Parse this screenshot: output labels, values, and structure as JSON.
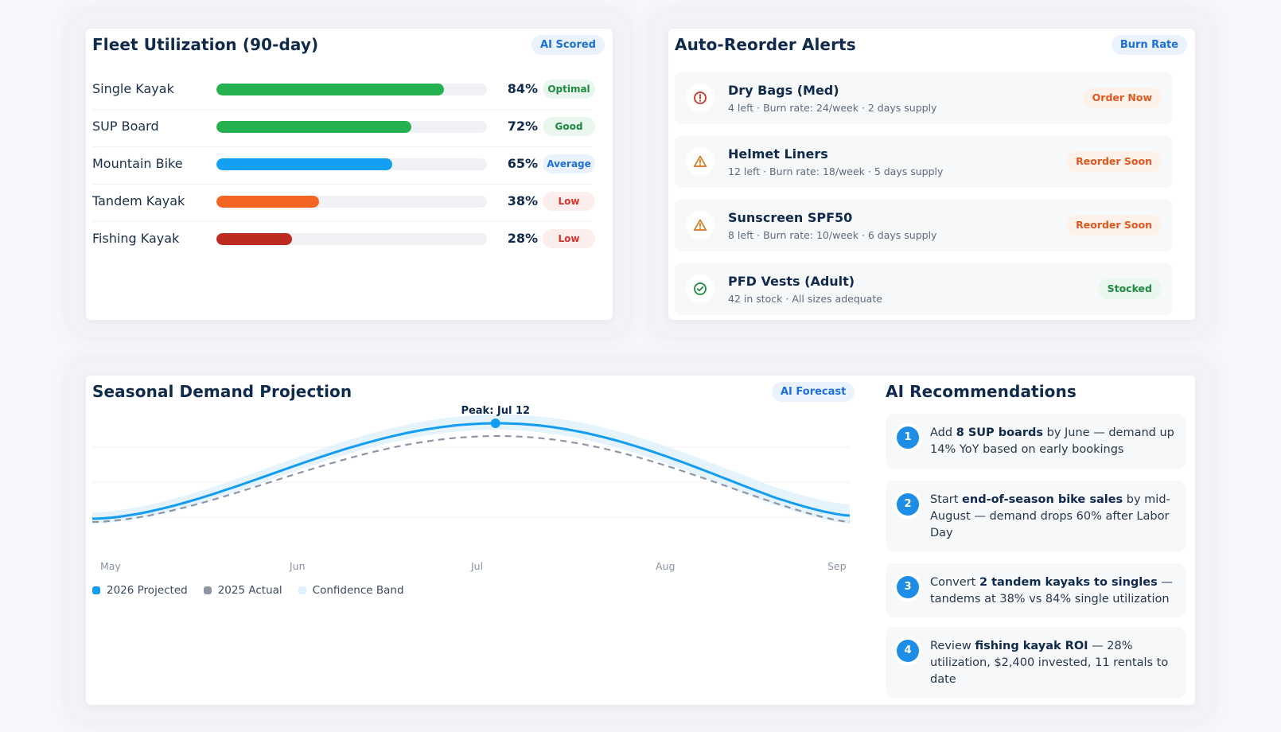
{
  "fleet": {
    "title": "Fleet Utilization (90-day)",
    "badge": "AI Scored",
    "rows": [
      {
        "name": "Single Kayak",
        "pct_value": 84,
        "pct": "84%",
        "status": "Optimal",
        "bar_color": "#25b150",
        "badge_fg": "#1c8a3f",
        "badge_bg": "#eaf7ee"
      },
      {
        "name": "SUP Board",
        "pct_value": 72,
        "pct": "72%",
        "status": "Good",
        "bar_color": "#25b150",
        "badge_fg": "#1c8a3f",
        "badge_bg": "#eaf7ee"
      },
      {
        "name": "Mountain Bike",
        "pct_value": 65,
        "pct": "65%",
        "status": "Average",
        "bar_color": "#13a0f3",
        "badge_fg": "#1e6fd9",
        "badge_bg": "#eaf3fd"
      },
      {
        "name": "Tandem Kayak",
        "pct_value": 38,
        "pct": "38%",
        "status": "Low",
        "bar_color": "#f46523",
        "badge_fg": "#d3342a",
        "badge_bg": "#fdeeee"
      },
      {
        "name": "Fishing Kayak",
        "pct_value": 28,
        "pct": "28%",
        "status": "Low",
        "bar_color": "#bd2a20",
        "badge_fg": "#d3342a",
        "badge_bg": "#fdeeee"
      }
    ]
  },
  "alerts": {
    "title": "Auto-Reorder Alerts",
    "badge": "Burn Rate",
    "items": [
      {
        "name": "Dry Bags (Med)",
        "detail": "4 left · Burn rate: 24/week · 2 days supply",
        "action": "Order Now",
        "icon": "alert-circle-icon",
        "icon_color": "#d3342a",
        "action_fg": "#e0571e",
        "action_bg": "#fdf1ea"
      },
      {
        "name": "Helmet Liners",
        "detail": "12 left · Burn rate: 18/week · 5 days supply",
        "action": "Reorder Soon",
        "icon": "warning-triangle-icon",
        "icon_color": "#d9741a",
        "action_fg": "#e0571e",
        "action_bg": "#fdf1ea"
      },
      {
        "name": "Sunscreen SPF50",
        "detail": "8 left · Burn rate: 10/week · 6 days supply",
        "action": "Reorder Soon",
        "icon": "warning-triangle-icon",
        "icon_color": "#d9741a",
        "action_fg": "#e0571e",
        "action_bg": "#fdf1ea"
      },
      {
        "name": "PFD Vests (Adult)",
        "detail": "42 in stock · All sizes adequate",
        "action": "Stocked",
        "icon": "check-circle-icon",
        "icon_color": "#1c8a3f",
        "action_fg": "#1c8a3f",
        "action_bg": "#eaf7ee"
      }
    ]
  },
  "demand": {
    "title": "Seasonal Demand Projection",
    "badge": "AI Forecast"
  },
  "chart_data": {
    "type": "line",
    "x": [
      "May",
      "Jun",
      "Jul",
      "Aug",
      "Sep"
    ],
    "annotation": "Peak: Jul 12",
    "annotation_x": 2.14,
    "legend": [
      "2026 Projected",
      "2025 Actual",
      "Confidence Band"
    ],
    "series_colors": {
      "projected": "#139cf2",
      "actual": "#8e96a6",
      "band": "#dff1fc"
    },
    "legend_placement": "bottom-left",
    "grid": true
  },
  "recommendations": {
    "title": "AI Recommendations",
    "items": [
      {
        "num": "1",
        "pre": "Add ",
        "bold": "8 SUP boards",
        "post": " by June — demand up 14% YoY based on early bookings"
      },
      {
        "num": "2",
        "pre": "Start ",
        "bold": "end-of-season bike sales",
        "post": " by mid-August — demand drops 60% after Labor Day"
      },
      {
        "num": "3",
        "pre": "Convert ",
        "bold": "2 tandem kayaks to singles",
        "post": " — tandems at 38% vs 84% single utilization"
      },
      {
        "num": "4",
        "pre": "Review ",
        "bold": "fishing kayak ROI",
        "post": " — 28% utilization, $2,400 invested, 11 rentals to date"
      }
    ]
  }
}
